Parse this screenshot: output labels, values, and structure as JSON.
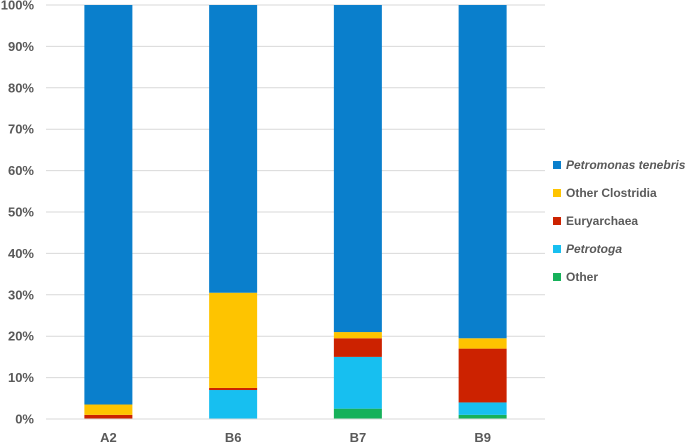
{
  "chart_data": {
    "type": "bar",
    "stacked": true,
    "percent_stacked": true,
    "categories": [
      "A2",
      "B6",
      "B7",
      "B9"
    ],
    "ylim": [
      0,
      100
    ],
    "yticks": [
      0,
      10,
      20,
      30,
      40,
      50,
      60,
      70,
      80,
      90,
      100
    ],
    "ytick_labels": [
      "0%",
      "10%",
      "20%",
      "30%",
      "40%",
      "50%",
      "60%",
      "70%",
      "80%",
      "90%",
      "100%"
    ],
    "grid": true,
    "legend_position": "right",
    "series": [
      {
        "name": "Other",
        "color": "#16b15a",
        "italic": false,
        "values": [
          0,
          0,
          2.5,
          1
        ]
      },
      {
        "name": "Petrotoga",
        "color": "#17bff0",
        "italic": true,
        "values": [
          0,
          7,
          12.5,
          3
        ]
      },
      {
        "name": "Euryarchaea",
        "color": "#cc2200",
        "italic": false,
        "values": [
          1,
          0.5,
          4.5,
          13
        ]
      },
      {
        "name": "Other Clostridia",
        "color": "#fec400",
        "italic": false,
        "values": [
          2.5,
          23,
          1.5,
          2.5
        ]
      },
      {
        "name": "Petromonas tenebris",
        "color": "#0a7fcc",
        "italic": true,
        "values": [
          96.5,
          69.5,
          79,
          80.5
        ]
      }
    ],
    "legend_order": [
      "Petromonas tenebris",
      "Other Clostridia",
      "Euryarchaea",
      "Petrotoga",
      "Other"
    ]
  }
}
